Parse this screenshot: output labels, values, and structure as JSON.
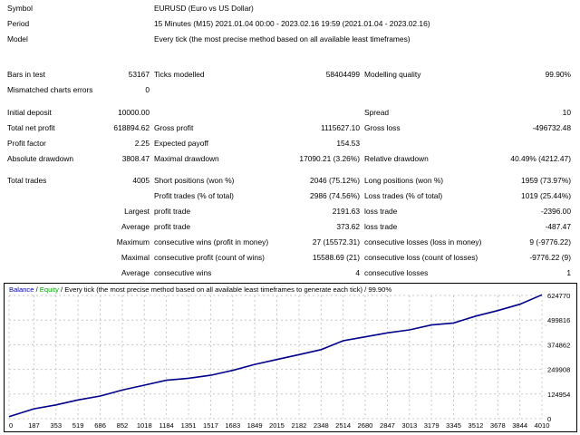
{
  "report": {
    "symbol_label": "Symbol",
    "symbol_value": "EURUSD (Euro vs US Dollar)",
    "period_label": "Period",
    "period_value": "15 Minutes (M15) 2021.01.04 00:00 - 2023.02.16 19:59 (2021.01.04 - 2023.02.16)",
    "model_label": "Model",
    "model_value": "Every tick (the most precise method based on all available least timeframes)",
    "bars_label": "Bars in test",
    "bars_value": "53167",
    "ticks_label": "Ticks modelled",
    "ticks_value": "58404499",
    "quality_label": "Modelling quality",
    "quality_value": "99.90%",
    "mismatch_label": "Mismatched charts errors",
    "mismatch_value": "0",
    "deposit_label": "Initial deposit",
    "deposit_value": "10000.00",
    "spread_label": "Spread",
    "spread_value": "10",
    "netprofit_label": "Total net profit",
    "netprofit_value": "618894.62",
    "grossprofit_label": "Gross profit",
    "grossprofit_value": "1115627.10",
    "grossloss_label": "Gross loss",
    "grossloss_value": "-496732.48",
    "pf_label": "Profit factor",
    "pf_value": "2.25",
    "payoff_label": "Expected payoff",
    "payoff_value": "154.53",
    "absdd_label": "Absolute drawdown",
    "absdd_value": "3808.47",
    "maxdd_label": "Maximal drawdown",
    "maxdd_value": "17090.21 (3.26%)",
    "reldd_label": "Relative drawdown",
    "reldd_value": "40.49% (4212.47)",
    "trades_label": "Total trades",
    "trades_value": "4005",
    "short_label": "Short positions (won %)",
    "short_value": "2046 (75.12%)",
    "long_label": "Long positions (won %)",
    "long_value": "1959 (73.97%)",
    "pt_label": "Profit trades (% of total)",
    "pt_value": "2986 (74.56%)",
    "lt_label": "Loss trades (% of total)",
    "lt_value": "1019 (25.44%)",
    "largest_label": "Largest",
    "largest_profit_label": "profit trade",
    "largest_profit_value": "2191.63",
    "largest_loss_label": "loss trade",
    "largest_loss_value": "-2396.00",
    "avg_label": "Average",
    "avg_profit_label": "profit trade",
    "avg_profit_value": "373.62",
    "avg_loss_label": "loss trade",
    "avg_loss_value": "-487.47",
    "max_label": "Maximum",
    "cw_money_label": "consecutive wins (profit in money)",
    "cw_money_value": "27 (15572.31)",
    "cl_money_label": "consecutive losses (loss in money)",
    "cl_money_value": "9 (-9776.22)",
    "maximal_label": "Maximal",
    "cp_count_label": "consecutive profit (count of wins)",
    "cp_count_value": "15588.69 (21)",
    "cl_count_label": "consecutive loss (count of losses)",
    "cl_count_value": "-9776.22 (9)",
    "average2_label": "Average",
    "avg_cw_label": "consecutive wins",
    "avg_cw_value": "4",
    "avg_cl_label": "consecutive losses",
    "avg_cl_value": "1"
  },
  "chart_header": {
    "balance_label": "Balance",
    "sep": " / ",
    "equity_label": "Equity",
    "rest": " / Every tick (the most precise method based on all available least timeframes to generate each tick) / 99.90%"
  },
  "colors": {
    "balance": "#0000aa",
    "equity": "#00aa00",
    "grid": "#c8c8c8",
    "curve": "#00008b"
  },
  "chart_data": {
    "type": "line",
    "title": "",
    "xlabel": "",
    "ylabel": "",
    "x_ticks": [
      "0",
      "187",
      "353",
      "519",
      "686",
      "852",
      "1018",
      "1184",
      "1351",
      "1517",
      "1683",
      "1849",
      "2015",
      "2182",
      "2348",
      "2514",
      "2680",
      "2847",
      "3013",
      "3179",
      "3345",
      "3512",
      "3678",
      "3844",
      "4010"
    ],
    "y_ticks": [
      "624770",
      "499816",
      "374862",
      "249908",
      "124954",
      "0"
    ],
    "xlim": [
      0,
      4010
    ],
    "ylim": [
      0,
      624770
    ],
    "series": [
      {
        "name": "Balance",
        "x": [
          0,
          187,
          353,
          519,
          686,
          852,
          1018,
          1184,
          1351,
          1517,
          1683,
          1849,
          2015,
          2182,
          2348,
          2514,
          2680,
          2847,
          3013,
          3179,
          3345,
          3512,
          3678,
          3844,
          4010
        ],
        "y": [
          10000,
          50000,
          70000,
          95000,
          115000,
          145000,
          170000,
          195000,
          205000,
          220000,
          245000,
          275000,
          300000,
          325000,
          350000,
          395000,
          415000,
          435000,
          450000,
          475000,
          485000,
          520000,
          548000,
          580000,
          628000
        ]
      }
    ]
  }
}
